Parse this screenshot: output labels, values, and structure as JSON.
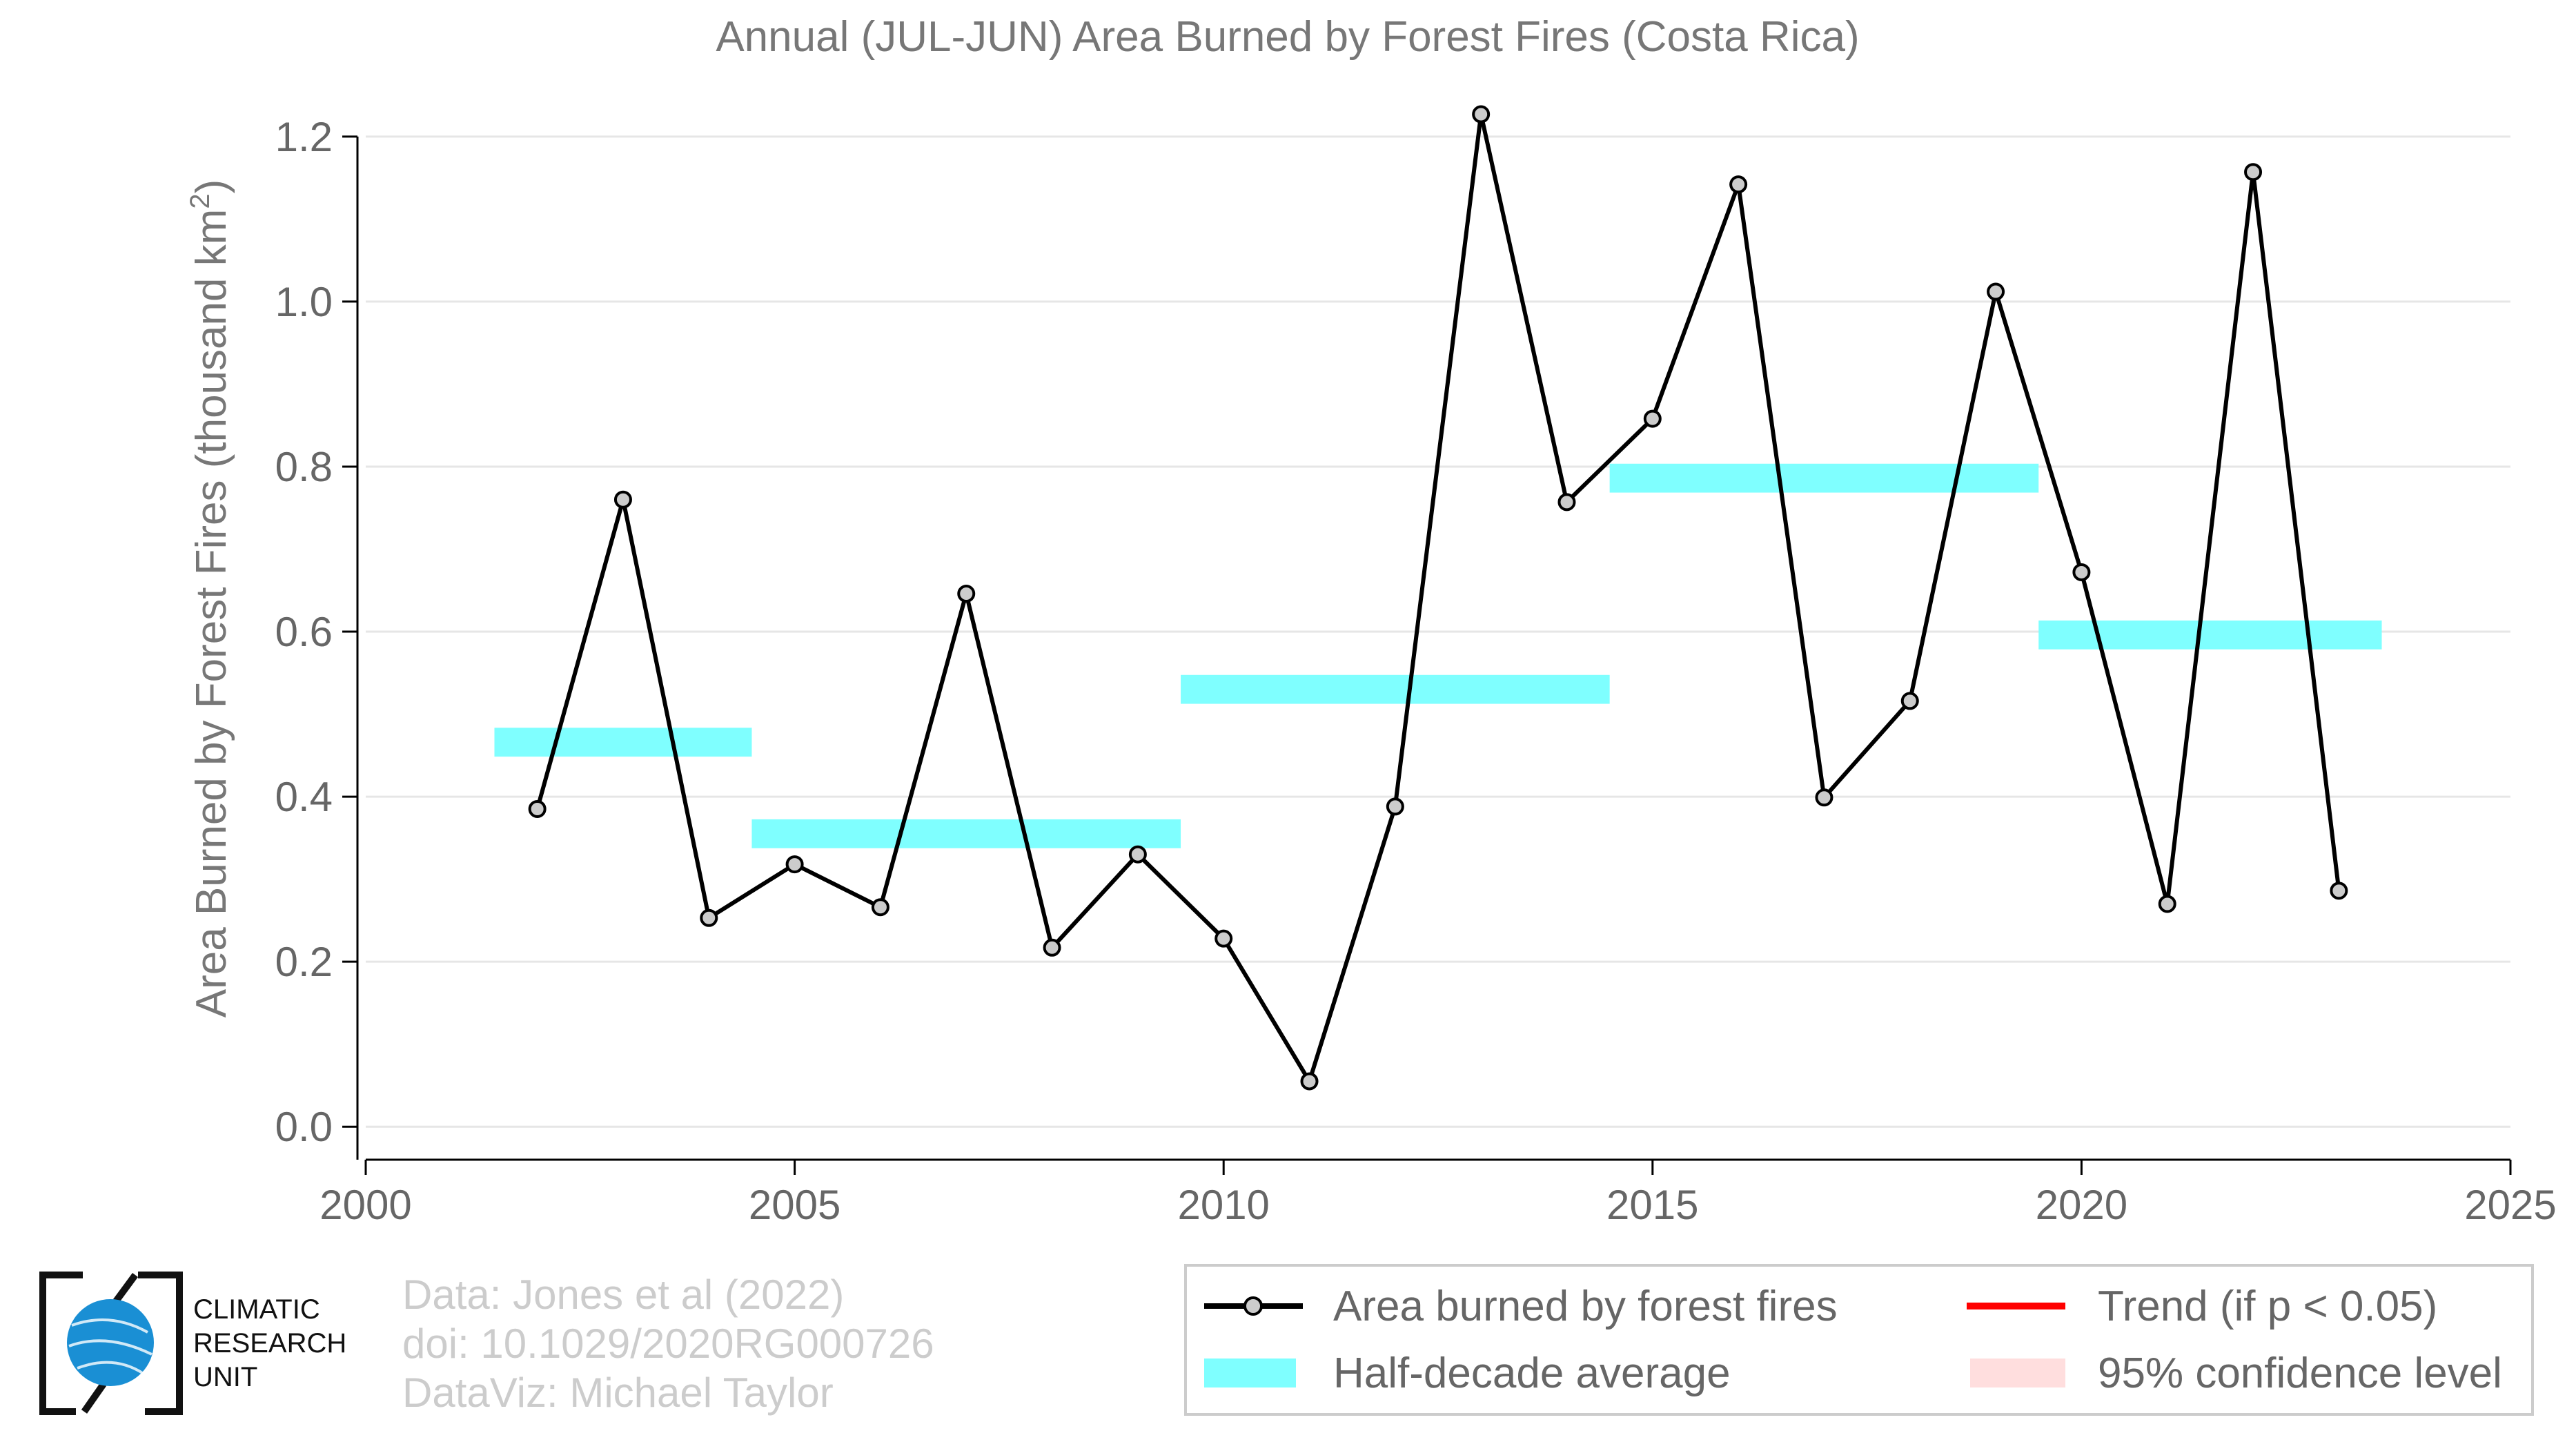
{
  "chart_data": {
    "type": "line",
    "title": "Annual (JUL-JUN) Area Burned by Forest Fires (Costa Rica)",
    "ylabel_main": "Area Burned by Forest Fires (thousand km",
    "ylabel_sup": "2",
    "ylabel_close": ")",
    "xlabel": "",
    "xlim": [
      2000,
      2025
    ],
    "ylim": [
      -0.04,
      1.24
    ],
    "x_ticks": [
      "2000",
      "2005",
      "2010",
      "2015",
      "2020",
      "2025"
    ],
    "y_ticks": [
      "0.0",
      "0.2",
      "0.4",
      "0.6",
      "0.8",
      "1.0",
      "1.2"
    ],
    "grid": true,
    "series": [
      {
        "name": "Area burned by forest fires",
        "color": "#000000",
        "marker_color": "#cccccc",
        "x": [
          2002,
          2003,
          2004,
          2005,
          2006,
          2007,
          2008,
          2009,
          2010,
          2011,
          2012,
          2013,
          2014,
          2015,
          2016,
          2017,
          2018,
          2019,
          2020,
          2021,
          2022,
          2023
        ],
        "y": [
          0.385,
          0.76,
          0.253,
          0.318,
          0.266,
          0.646,
          0.217,
          0.33,
          0.228,
          0.055,
          0.388,
          1.227,
          0.757,
          0.858,
          1.142,
          0.399,
          0.516,
          1.012,
          0.672,
          0.27,
          1.157,
          0.286
        ]
      }
    ],
    "half_decade_averages": {
      "name": "Half-decade average",
      "color": "#7fffff",
      "segments": [
        {
          "x_start": 2001.5,
          "x_end": 2004.5,
          "value": 0.466
        },
        {
          "x_start": 2004.5,
          "x_end": 2009.5,
          "value": 0.355
        },
        {
          "x_start": 2009.5,
          "x_end": 2014.5,
          "value": 0.53
        },
        {
          "x_start": 2014.5,
          "x_end": 2019.5,
          "value": 0.786
        },
        {
          "x_start": 2019.5,
          "x_end": 2023.5,
          "value": 0.596
        }
      ]
    },
    "legend": {
      "placement": "bottom-right",
      "entries": [
        {
          "label": "Area burned by forest fires",
          "kind": "line-marker",
          "color": "#000000"
        },
        {
          "label": "Trend (if p < 0.05)",
          "kind": "line",
          "color": "#ff0000"
        },
        {
          "label": "Half-decade average",
          "kind": "band",
          "color": "#7fffff"
        },
        {
          "label": "95% confidence level",
          "kind": "band",
          "color": "#ffdede"
        }
      ]
    }
  },
  "credits": {
    "line1": "Data: Jones et al (2022)",
    "line2": "doi: 10.1029/2020RG000726",
    "line3": "DataViz: Michael Taylor"
  },
  "logo": {
    "line1": "CLIMATIC",
    "line2": "RESEARCH",
    "line3": "UNIT",
    "accent": "#1a8fd4"
  }
}
